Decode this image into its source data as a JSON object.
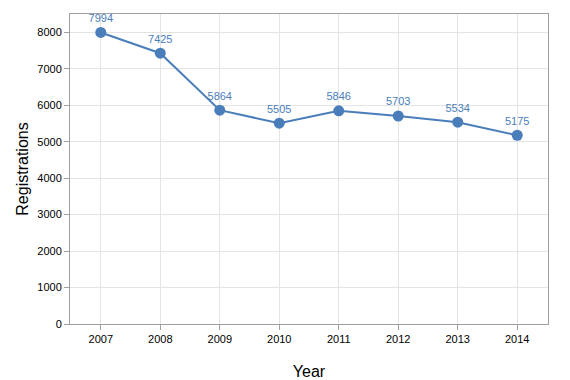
{
  "chart_data": {
    "type": "line",
    "x_label": "Year",
    "y_label": "Registrations",
    "categories": [
      "2007",
      "2008",
      "2009",
      "2010",
      "2011",
      "2012",
      "2013",
      "2014"
    ],
    "values": [
      7994,
      7425,
      5864,
      5505,
      5846,
      5703,
      5534,
      5175
    ],
    "color": "#4a7ebb",
    "marker": "circle",
    "line_style": "solid",
    "data_labels": true,
    "ylim": [
      0,
      8500
    ],
    "yticks": [
      0,
      1000,
      2000,
      3000,
      4000,
      5000,
      6000,
      7000,
      8000
    ],
    "grid": true
  }
}
